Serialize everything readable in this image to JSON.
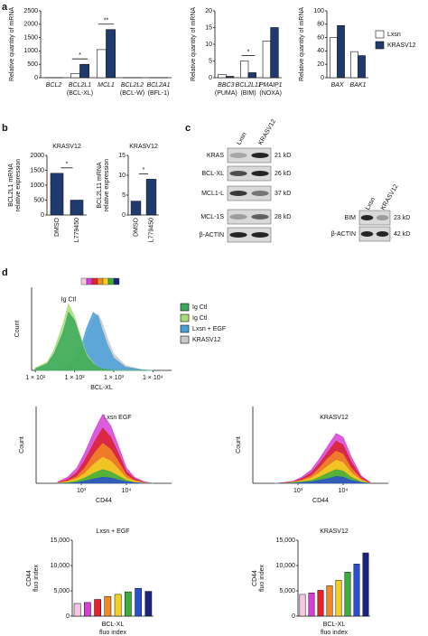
{
  "panel_labels": [
    "a",
    "b",
    "c",
    "d"
  ],
  "chart_data": [
    {
      "type": "bar",
      "y_label": "Relative quantity of mRNA",
      "categories": [
        "BCL2",
        "BCL2L1",
        "MCL1",
        "BCL2L2",
        "BCL2A1"
      ],
      "category_notes": [
        null,
        "(BCL-XL)",
        null,
        "(BCL-W)",
        "(BFL-1)"
      ],
      "series": [
        {
          "color": "#ffffff",
          "values": [
            5,
            150,
            1050,
            5,
            5
          ]
        },
        {
          "color": "#1f3b6e",
          "values": [
            5,
            500,
            1800,
            5,
            5
          ]
        }
      ],
      "ylim": [
        0,
        2500
      ],
      "yticks": [
        0,
        500,
        1000,
        1500,
        2000,
        2500
      ],
      "annotations": [
        "*",
        "**"
      ]
    },
    {
      "type": "bar",
      "y_label": "Relative quantity of mRNA",
      "categories": [
        "BBC3",
        "BCL2L11",
        "PMAIP1"
      ],
      "category_notes": [
        "(PUMA)",
        "(BIM)",
        "(NOXA)"
      ],
      "series": [
        {
          "color": "#ffffff",
          "values": [
            1,
            5,
            11
          ]
        },
        {
          "color": "#1f3b6e",
          "values": [
            0.4,
            1.5,
            15
          ]
        }
      ],
      "ylim": [
        0,
        20
      ],
      "yticks": [
        0,
        5,
        10,
        15,
        20
      ],
      "annotations": [
        "*"
      ]
    },
    {
      "type": "bar",
      "y_label": "Relative quantity of mRNA",
      "categories": [
        "BAX",
        "BAK1"
      ],
      "series": [
        {
          "name": "Lxsn",
          "color": "#ffffff",
          "values": [
            60,
            39
          ]
        },
        {
          "name": "KRASV12",
          "color": "#1f3b6e",
          "values": [
            78,
            33
          ]
        }
      ],
      "ylim": [
        0,
        100
      ],
      "yticks": [
        0,
        20,
        40,
        60,
        80,
        100
      ],
      "legend": "right"
    },
    {
      "type": "bar",
      "title": "KRASV12",
      "y_label": [
        "BCL2L1 mRNA",
        "relative expression"
      ],
      "categories": [
        "DMSO",
        "L779450"
      ],
      "values": [
        1400,
        500
      ],
      "color": "#1f3b6e",
      "ylim": [
        0,
        2000
      ],
      "yticks": [
        0,
        500,
        1000,
        1500,
        2000
      ],
      "annotations": [
        "*"
      ]
    },
    {
      "type": "bar",
      "title": "KRASV12",
      "y_label": [
        "BCL2L11 mRNA",
        "relative expression"
      ],
      "categories": [
        "DMSO",
        "L779450"
      ],
      "values": [
        3.5,
        9
      ],
      "color": "#1f3b6e",
      "ylim": [
        0,
        15
      ],
      "yticks": [
        0,
        5,
        10,
        15
      ],
      "annotations": [
        "*"
      ]
    },
    {
      "type": "area",
      "x_label": "BCL-XL",
      "y_label": "Count",
      "xscale": "log",
      "x": [
        10,
        20,
        30,
        50,
        70,
        100,
        150,
        200,
        300,
        400,
        500,
        700,
        1000,
        2000,
        5000,
        10000
      ],
      "series": [
        {
          "name": "Ig Ctl",
          "color": "#3aa85a",
          "values": [
            2,
            8,
            20,
            45,
            70,
            60,
            35,
            18,
            8,
            4,
            2,
            1,
            0,
            0,
            0,
            0
          ]
        },
        {
          "name": "Ig Ctl",
          "color": "#a6dc7a",
          "values": [
            3,
            10,
            25,
            55,
            80,
            65,
            38,
            20,
            9,
            4,
            2,
            1,
            0,
            0,
            0,
            0
          ]
        },
        {
          "name": "Lxsn + EGF",
          "color": "#4a9fd8",
          "values": [
            0,
            0,
            1,
            3,
            8,
            15,
            30,
            50,
            70,
            65,
            50,
            30,
            15,
            4,
            1,
            0
          ]
        },
        {
          "name": "KRASV12",
          "color": "#c8c8c8",
          "values": [
            0,
            0,
            0,
            2,
            5,
            12,
            25,
            42,
            62,
            68,
            58,
            38,
            20,
            6,
            1,
            0
          ]
        }
      ],
      "xlim": [
        8,
        30000
      ],
      "ylim": [
        0,
        100
      ],
      "xticks": [
        {
          "value": 10,
          "label": "1 × 10¹"
        },
        {
          "value": 100,
          "label": "1 × 10²"
        },
        {
          "value": 1000,
          "label": "1 × 10³"
        },
        {
          "value": 10000,
          "label": "1 × 10⁴"
        }
      ],
      "annotations": [
        "Ig Ctl"
      ],
      "legend": "right"
    },
    {
      "type": "area",
      "title": "Lxsn EGF",
      "x_label": "CD44",
      "y_label": "Count",
      "xscale": "log",
      "x": [
        300,
        500,
        800,
        1200,
        2000,
        3000,
        4500,
        7000,
        10000,
        15000,
        25000,
        40000
      ],
      "series": [
        {
          "color": "#d63fd6",
          "values": [
            2,
            8,
            20,
            40,
            70,
            90,
            75,
            45,
            20,
            8,
            2,
            0
          ]
        },
        {
          "color": "#d8202a",
          "values": [
            1,
            5,
            14,
            30,
            55,
            72,
            60,
            36,
            15,
            6,
            1,
            0
          ]
        },
        {
          "color": "#f08a24",
          "values": [
            1,
            3,
            9,
            20,
            40,
            52,
            44,
            26,
            11,
            4,
            1,
            0
          ]
        },
        {
          "color": "#f2d024",
          "values": [
            0,
            2,
            6,
            13,
            26,
            34,
            29,
            17,
            7,
            3,
            0,
            0
          ]
        },
        {
          "color": "#3cae3c",
          "values": [
            0,
            1,
            3,
            7,
            14,
            18,
            15,
            9,
            4,
            1,
            0,
            0
          ]
        },
        {
          "color": "#2a4fd0",
          "values": [
            0,
            0,
            1,
            3,
            6,
            8,
            7,
            4,
            2,
            1,
            0,
            0
          ]
        }
      ],
      "xlim": [
        100,
        100000
      ],
      "ylim": [
        0,
        100
      ],
      "xticks": [
        {
          "value": 1000,
          "label": "10³"
        },
        {
          "value": 10000,
          "label": "10⁴"
        }
      ]
    },
    {
      "type": "area",
      "title": "KRASV12",
      "x_label": "CD44",
      "y_label": "Count",
      "xscale": "log",
      "x": [
        300,
        500,
        800,
        1200,
        2000,
        3000,
        4500,
        7000,
        10000,
        15000,
        25000,
        40000
      ],
      "series": [
        {
          "color": "#d63fd6",
          "values": [
            0,
            1,
            3,
            8,
            18,
            32,
            48,
            65,
            60,
            35,
            10,
            1
          ]
        },
        {
          "color": "#d8202a",
          "values": [
            0,
            1,
            2,
            6,
            14,
            26,
            40,
            55,
            50,
            28,
            8,
            1
          ]
        },
        {
          "color": "#f08a24",
          "values": [
            0,
            0,
            2,
            4,
            10,
            20,
            32,
            42,
            38,
            20,
            6,
            0
          ]
        },
        {
          "color": "#f2d024",
          "values": [
            0,
            0,
            1,
            3,
            7,
            14,
            22,
            30,
            27,
            14,
            4,
            0
          ]
        },
        {
          "color": "#3cae3c",
          "values": [
            0,
            0,
            1,
            2,
            4,
            8,
            13,
            18,
            16,
            8,
            2,
            0
          ]
        },
        {
          "color": "#2a4fd0",
          "values": [
            0,
            0,
            0,
            1,
            2,
            4,
            6,
            9,
            8,
            4,
            1,
            0
          ]
        }
      ],
      "xlim": [
        100,
        100000
      ],
      "ylim": [
        0,
        100
      ],
      "xticks": [
        {
          "value": 1000,
          "label": "10³"
        },
        {
          "value": 10000,
          "label": "10⁴"
        }
      ]
    },
    {
      "type": "bar",
      "title": "Lxsn + EGF",
      "y_label": [
        "CD44",
        "fluo index"
      ],
      "x_label": [
        "BCL-XL",
        "fluo index"
      ],
      "values": [
        2500,
        2700,
        3300,
        3900,
        4300,
        4800,
        5500,
        4900
      ],
      "colors": [
        "#f7c6e0",
        "#d63fd6",
        "#e8202a",
        "#f08a24",
        "#f2d024",
        "#3cae3c",
        "#2a4fd0",
        "#1a237e"
      ],
      "ylim": [
        0,
        15000
      ],
      "yticks": [
        0,
        {
          "value": 5000,
          "label": "5,000"
        },
        {
          "value": 10000,
          "label": "10,000"
        },
        {
          "value": 15000,
          "label": "15,000"
        }
      ]
    },
    {
      "type": "bar",
      "title": "KRASV12",
      "y_label": [
        "CD44",
        "fluo index"
      ],
      "x_label": [
        "BCL-XL",
        "fluo index"
      ],
      "values": [
        4300,
        4600,
        5100,
        6000,
        7100,
        8700,
        10300,
        12500
      ],
      "colors": [
        "#f7c6e0",
        "#d63fd6",
        "#e8202a",
        "#f08a24",
        "#f2d024",
        "#3cae3c",
        "#2a4fd0",
        "#1a237e"
      ],
      "ylim": [
        0,
        15000
      ],
      "yticks": [
        0,
        {
          "value": 5000,
          "label": "5,000"
        },
        {
          "value": 10000,
          "label": "10,000"
        },
        {
          "value": 15000,
          "label": "15,000"
        }
      ]
    }
  ],
  "blots": [
    {
      "lanes": [
        "Lxsn",
        "KRASV12"
      ],
      "rows": [
        {
          "label": "KRAS",
          "size": "21 kD"
        },
        {
          "label": "BCL-XL",
          "size": "26 kD"
        },
        {
          "label": "MCL1-L",
          "size": "37 kD"
        },
        {
          "label": "MCL-1S",
          "size": "28 kD"
        },
        {
          "label": "β-ACTIN"
        }
      ]
    },
    {
      "lanes": [
        "Lxsn",
        "KRASV12"
      ],
      "rows": [
        {
          "label": "BIM",
          "size": "23 kD"
        },
        {
          "label": "β-ACTIN",
          "size": "42 kD"
        }
      ]
    }
  ]
}
